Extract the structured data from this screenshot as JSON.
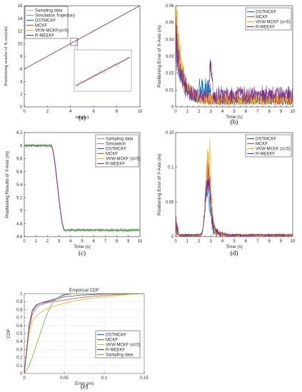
{
  "colors": {
    "sampling": "#8fd18f",
    "simulation": "#c879c8",
    "dstmckf": "#0072BD",
    "mckf": "#D95319",
    "vkw": "#EDB120",
    "rmeekf": "#7E2F8E",
    "bright_green": "#3cd43c",
    "sampling_e": "#77AC30"
  },
  "chart_data": [
    {
      "id": "a",
      "type": "line",
      "caption": "(a)",
      "xlabel": "time(s)",
      "ylabel": "Positioning results of X-axis(m)",
      "xlim": [
        0,
        10
      ],
      "ylim": [
        0,
        16
      ],
      "xticks": [
        0,
        2,
        4,
        6,
        8,
        10
      ],
      "yticks": [
        0,
        2,
        4,
        6,
        8,
        10,
        12,
        14,
        16
      ],
      "legend_position": "top-left",
      "legend": [
        "Sampling data",
        "Simulation Trajectory",
        "DSTMCKF",
        "MCKF",
        "VKW-MCKF(σ=5)",
        "R-MEEKF"
      ],
      "series": [
        {
          "name": "Simulation Trajectory",
          "x": [
            0,
            10
          ],
          "y": [
            6,
            16
          ]
        }
      ],
      "inset": {
        "xlim": [
          4.0,
          4.6
        ],
        "ylim": [
          9.7,
          10.9
        ],
        "note": "zoom on region near t=4.3"
      }
    },
    {
      "id": "b",
      "type": "line",
      "caption": "(b)",
      "xlabel": "Time (s)",
      "ylabel": "Positioning Error of X-Axis (m)",
      "xlim": [
        0,
        10
      ],
      "ylim": [
        0,
        0.06
      ],
      "xticks": [
        0,
        0.5,
        1,
        1.5,
        2,
        2.5,
        3,
        3.5,
        4,
        4.5,
        5,
        5.5,
        6,
        6.5,
        7,
        7.5,
        8,
        8.5,
        9,
        9.5,
        10
      ],
      "xticklabels": [
        "0",
        "",
        "1",
        "",
        "2",
        "",
        "3",
        "",
        "4",
        "",
        "5",
        "",
        "6",
        "",
        "7",
        "",
        "8",
        "",
        "9",
        "",
        "10"
      ],
      "yticks": [
        0,
        0.01,
        0.02,
        0.03,
        0.04,
        0.05,
        0.06
      ],
      "yticklabels": [
        "0",
        "0.01",
        "0.02",
        "0.03",
        "0.04",
        "0.05",
        "0.06"
      ],
      "legend_position": "top-right",
      "legend": [
        "DSTMCKF",
        "MCKF",
        "VKW-MCKF (σ=5)",
        "R-MEEKF"
      ],
      "series": [
        {
          "name": "DSTMCKF",
          "peak_t": 0.05,
          "peak": 0.045,
          "tail": 0.004
        },
        {
          "name": "MCKF",
          "peak_t": 0.05,
          "peak": 0.05,
          "tail": 0.004
        },
        {
          "name": "VKW-MCKF (σ=5)",
          "peak_t": 0.05,
          "peak": 0.058,
          "tail": 0.005
        },
        {
          "name": "R-MEEKF",
          "peak_t": 0.05,
          "peak": 0.04,
          "tail": 0.006,
          "bump_t": 3.0,
          "bump": 0.025
        }
      ]
    },
    {
      "id": "c",
      "type": "line",
      "caption": "(c)",
      "xlabel": "Time (s)",
      "ylabel": "Positioning Results of Y-Axis (m)",
      "xlim": [
        0,
        10
      ],
      "ylim": [
        4.6,
        6.2
      ],
      "xticks": [
        0,
        1,
        2,
        3,
        4,
        5,
        6,
        7,
        8,
        9,
        10
      ],
      "yticks": [
        4.6,
        4.8,
        5.0,
        5.2,
        5.4,
        5.6,
        5.8,
        6.0,
        6.2
      ],
      "yticklabels": [
        "4.6",
        "4.8",
        "5",
        "5.2",
        "5.4",
        "5.6",
        "5.8",
        "6",
        "6.2"
      ],
      "legend_position": "top-right",
      "legend": [
        "Sampling data",
        "Simulation",
        "DSTMCKF",
        "MCKF",
        "VKW-MCKF (σ=5)",
        "R-MEEKF"
      ],
      "series": [
        {
          "name": "Simulation",
          "start": 6.0,
          "end": 4.7,
          "t0": 2.3,
          "t1": 3.5
        }
      ]
    },
    {
      "id": "d",
      "type": "line",
      "caption": "(d)",
      "xlabel": "Time (s)",
      "ylabel": "Positioning Error of Y-Axis (m)",
      "xlim": [
        0,
        10
      ],
      "ylim": [
        0,
        0.15
      ],
      "xticks": [
        0,
        0.5,
        1,
        1.5,
        2,
        2.5,
        3,
        3.5,
        4,
        4.5,
        5,
        5.5,
        6,
        6.5,
        7,
        7.5,
        8,
        8.5,
        9,
        9.5,
        10
      ],
      "xticklabels": [
        "0",
        "",
        "1",
        "",
        "2",
        "",
        "3",
        "",
        "4",
        "",
        "5",
        "",
        "6",
        "",
        "7",
        "",
        "8",
        "",
        "9",
        "",
        "10"
      ],
      "yticks": [
        0,
        0.05,
        0.1,
        0.15
      ],
      "yticklabels": [
        "0",
        "0.05",
        "0.1",
        "0.15"
      ],
      "legend_position": "top-right",
      "legend": [
        "DSTMCKF",
        "MCKF",
        "VKW-MCKF (σ=5)",
        "R-MEEKF"
      ],
      "series": [
        {
          "name": "DSTMCKF",
          "peak_t": 2.7,
          "peak": 0.08
        },
        {
          "name": "MCKF",
          "peak_t": 2.75,
          "peak": 0.12
        },
        {
          "name": "VKW-MCKF (σ=5)",
          "peak_t": 2.8,
          "peak": 0.147
        },
        {
          "name": "R-MEEKF",
          "peak_t": 2.75,
          "peak": 0.1
        }
      ]
    },
    {
      "id": "e",
      "type": "line",
      "caption": "(e)",
      "title": "Empirical CDF",
      "xlabel": "Error (m)",
      "ylabel": "CDF",
      "xlim": [
        0,
        0.15
      ],
      "ylim": [
        0,
        1
      ],
      "xticks": [
        0,
        0.05,
        0.1,
        0.15
      ],
      "xticklabels": [
        "0",
        "0.05",
        "0.1",
        "0.15"
      ],
      "yticks": [
        0,
        0.1,
        0.2,
        0.3,
        0.4,
        0.5,
        0.6,
        0.7,
        0.8,
        0.9,
        1
      ],
      "yticklabels": [
        "0",
        "0.1",
        "0.2",
        "0.3",
        "0.4",
        "0.5",
        "0.6",
        "0.7",
        "0.8",
        "0.9",
        "1"
      ],
      "grid": true,
      "legend_position": "right",
      "legend": [
        "DSTMCKF",
        "MCKF",
        "VKW-MCKF (σ=5)",
        "R-MEEKF",
        "Sampling data"
      ],
      "series": [
        {
          "name": "DSTMCKF",
          "x": [
            0,
            0.003,
            0.006,
            0.01,
            0.015,
            0.02,
            0.03,
            0.04,
            0.05,
            0.06,
            0.08,
            0.15
          ],
          "y": [
            0,
            0.3,
            0.6,
            0.78,
            0.85,
            0.88,
            0.91,
            0.94,
            0.99,
            1.0,
            1.0,
            1.0
          ]
        },
        {
          "name": "MCKF",
          "x": [
            0,
            0.003,
            0.006,
            0.01,
            0.015,
            0.02,
            0.03,
            0.05,
            0.07,
            0.09,
            0.12,
            0.15
          ],
          "y": [
            0,
            0.28,
            0.55,
            0.74,
            0.82,
            0.86,
            0.89,
            0.92,
            0.95,
            0.97,
            0.99,
            1.0
          ]
        },
        {
          "name": "VKW-MCKF (σ=5)",
          "x": [
            0,
            0.003,
            0.006,
            0.01,
            0.015,
            0.02,
            0.03,
            0.05,
            0.07,
            0.1,
            0.13,
            0.15
          ],
          "y": [
            0,
            0.25,
            0.5,
            0.66,
            0.72,
            0.76,
            0.82,
            0.88,
            0.92,
            0.96,
            0.99,
            1.0
          ]
        },
        {
          "name": "R-MEEKF",
          "x": [
            0,
            0.003,
            0.006,
            0.01,
            0.015,
            0.02,
            0.03,
            0.04,
            0.05,
            0.07,
            0.1,
            0.15
          ],
          "y": [
            0,
            0.3,
            0.6,
            0.79,
            0.86,
            0.88,
            0.9,
            0.93,
            0.96,
            0.98,
            0.995,
            1.0
          ]
        },
        {
          "name": "Sampling data",
          "x": [
            0,
            0.005,
            0.01,
            0.015,
            0.02,
            0.025,
            0.03,
            0.035,
            0.04,
            0.05,
            0.06,
            0.15
          ],
          "y": [
            0,
            0.08,
            0.2,
            0.35,
            0.5,
            0.65,
            0.78,
            0.88,
            0.94,
            0.98,
            1.0,
            1.0
          ]
        }
      ]
    }
  ]
}
